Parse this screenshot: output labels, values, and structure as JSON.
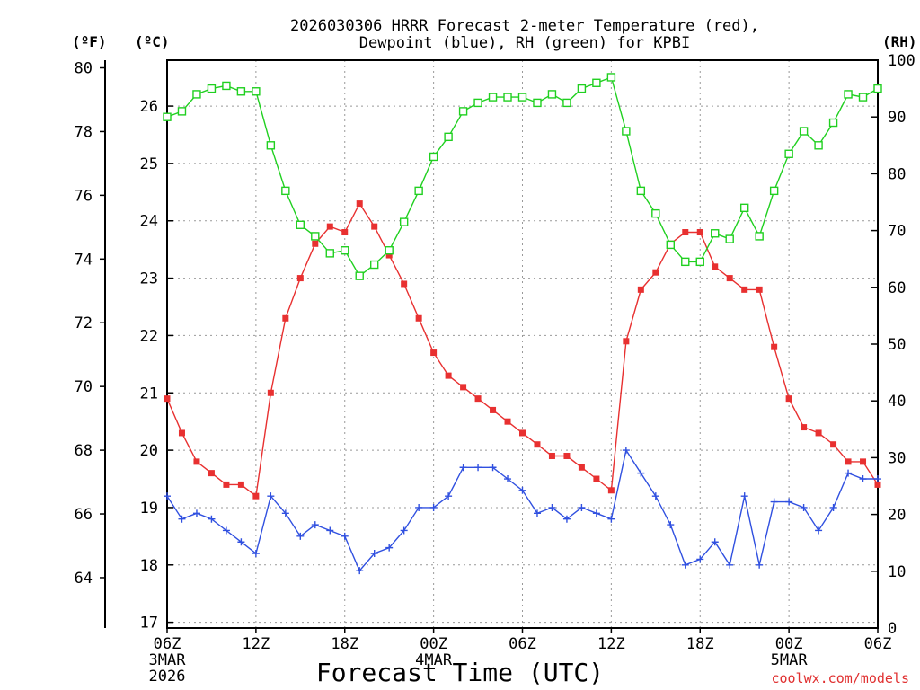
{
  "chart_data": {
    "type": "line",
    "title_line1": "2026030306 HRRR Forecast 2-meter Temperature (red),",
    "title_line2": "Dewpoint (blue), RH (green) for KPBI",
    "xlabel": "Forecast Time (UTC)",
    "credit": "coolwx.com/models",
    "units": {
      "fahrenheit": "(ºF)",
      "celsius": "(ºC)",
      "rh": "(RH)"
    },
    "x_hours": [
      0,
      1,
      2,
      3,
      4,
      5,
      6,
      7,
      8,
      9,
      10,
      11,
      12,
      13,
      14,
      15,
      16,
      17,
      18,
      19,
      20,
      21,
      22,
      23,
      24,
      25,
      26,
      27,
      28,
      29,
      30,
      31,
      32,
      33,
      34,
      35,
      36,
      37,
      38,
      39,
      40,
      41,
      42,
      43,
      44,
      45,
      46,
      47,
      48
    ],
    "xlim": [
      0,
      48
    ],
    "x_ticks": [
      {
        "hour": 0,
        "label": "06Z",
        "date": "3MAR",
        "year": "2026"
      },
      {
        "hour": 6,
        "label": "12Z"
      },
      {
        "hour": 12,
        "label": "18Z"
      },
      {
        "hour": 18,
        "label": "00Z",
        "date": "4MAR"
      },
      {
        "hour": 24,
        "label": "06Z"
      },
      {
        "hour": 30,
        "label": "12Z"
      },
      {
        "hour": 36,
        "label": "18Z"
      },
      {
        "hour": 42,
        "label": "00Z",
        "date": "5MAR"
      },
      {
        "hour": 48,
        "label": "06Z"
      }
    ],
    "celsius_axis": {
      "ylim": [
        16.9,
        26.8
      ],
      "ticks": [
        "17",
        "18",
        "19",
        "20",
        "21",
        "22",
        "23",
        "24",
        "25",
        "26"
      ]
    },
    "fahrenheit_axis": {
      "ticks": [
        "64",
        "66",
        "68",
        "70",
        "72",
        "74",
        "76",
        "78",
        "80"
      ]
    },
    "rh_axis": {
      "ylim": [
        0,
        100
      ],
      "ticks": [
        "0",
        "10",
        "20",
        "30",
        "40",
        "50",
        "60",
        "70",
        "80",
        "90",
        "100"
      ]
    },
    "series": [
      {
        "name": "2-meter Temperature",
        "color": "#e83030",
        "marker": "filled-square",
        "axis": "celsius",
        "values": [
          20.9,
          20.3,
          19.8,
          19.6,
          19.4,
          19.4,
          19.2,
          21.0,
          22.3,
          23.0,
          23.6,
          23.9,
          23.8,
          24.3,
          23.9,
          23.4,
          22.9,
          22.3,
          21.7,
          21.3,
          21.1,
          20.9,
          20.7,
          20.5,
          20.3,
          20.1,
          19.9,
          19.9,
          19.7,
          19.5,
          19.3,
          21.9,
          22.8,
          23.1,
          23.6,
          23.8,
          23.8,
          23.2,
          23.0,
          22.8,
          22.8,
          21.8,
          20.9,
          20.4,
          20.3,
          20.1,
          19.8,
          19.8,
          19.4
        ]
      },
      {
        "name": "Dewpoint",
        "color": "#3050e0",
        "marker": "plus",
        "axis": "celsius",
        "values": [
          19.2,
          18.8,
          18.9,
          18.8,
          18.6,
          18.4,
          18.2,
          19.2,
          18.9,
          18.5,
          18.7,
          18.6,
          18.5,
          17.9,
          18.2,
          18.3,
          18.6,
          19.0,
          19.0,
          19.2,
          19.7,
          19.7,
          19.7,
          19.5,
          19.3,
          18.9,
          19.0,
          18.8,
          19.0,
          18.9,
          18.8,
          20.0,
          19.6,
          19.2,
          18.7,
          18.0,
          18.1,
          18.4,
          18.0,
          19.2,
          18.0,
          19.1,
          19.1,
          19.0,
          18.6,
          19.0,
          19.6,
          19.5,
          19.5
        ]
      },
      {
        "name": "RH",
        "color": "#20d020",
        "marker": "open-square",
        "axis": "rh",
        "values": [
          90,
          91,
          94,
          95,
          95.5,
          94.5,
          94.5,
          85,
          77,
          71,
          69,
          66,
          66.5,
          62,
          64,
          66.5,
          71.5,
          77,
          83,
          86.5,
          91,
          92.5,
          93.5,
          93.5,
          93.5,
          92.5,
          94,
          92.5,
          95,
          96,
          97,
          87.5,
          77,
          73,
          67.5,
          64.5,
          64.5,
          69.5,
          68.5,
          74,
          69,
          77,
          83.5,
          87.5,
          85,
          89,
          94,
          93.5,
          95
        ]
      }
    ]
  }
}
